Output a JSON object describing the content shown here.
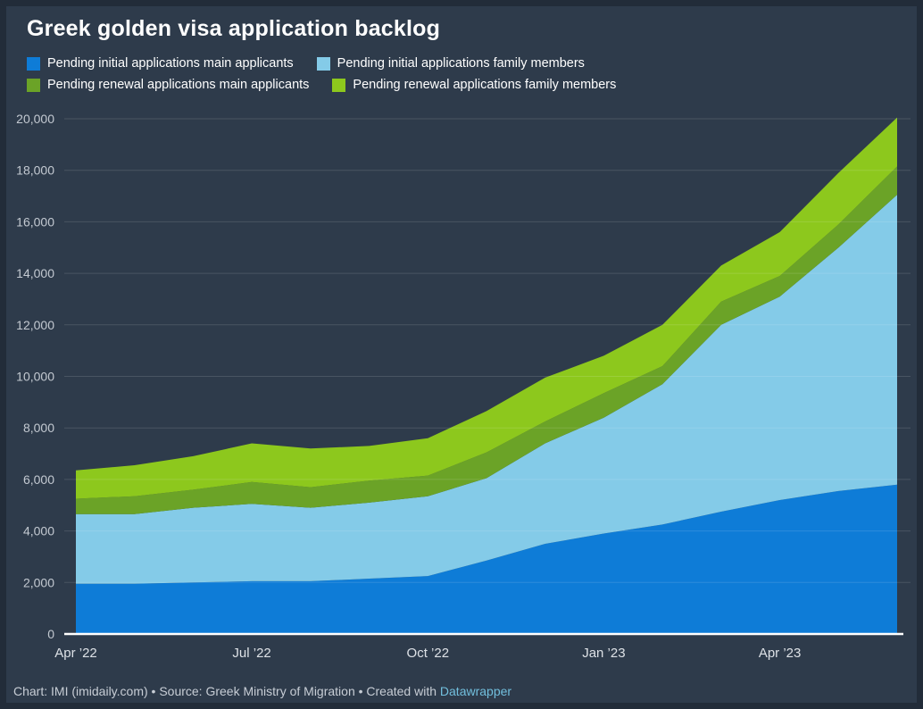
{
  "header": {
    "title": "Greek golden visa application backlog"
  },
  "theme": {
    "frame_color": "#222c39",
    "background_color": "#2e3b4b",
    "gridline_color": "#ffffff",
    "baseline_color": "#ffffff",
    "y_label_color": "#c3c9d1",
    "x_label_color": "#dde1e6",
    "footer_link_color": "#72bfdd"
  },
  "chart_data": {
    "type": "area",
    "stacked": true,
    "title": "Greek golden visa application backlog",
    "x": [
      "Apr ’22",
      "May ’22",
      "Jun ’22",
      "Jul ’22",
      "Aug ’22",
      "Sep ’22",
      "Oct ’22",
      "Nov ’22",
      "Dec ’22",
      "Jan ’23",
      "Feb ’23",
      "Mar ’23",
      "Apr ’23",
      "May ’23",
      "Jun ’23"
    ],
    "xticks_shown": [
      0,
      3,
      6,
      9,
      12
    ],
    "xtick_labels": [
      "Apr ’22",
      "Jul ’22",
      "Oct ’22",
      "Jan ’23",
      "Apr ’23"
    ],
    "ylim": [
      0,
      20000
    ],
    "ytick_step": 2000,
    "ytick_labels": [
      "0",
      "2,000",
      "4,000",
      "6,000",
      "8,000",
      "10,000",
      "12,000",
      "14,000",
      "16,000",
      "18,000",
      "20,000"
    ],
    "grid": true,
    "legend_position": "top",
    "series": [
      {
        "name": "Pending initial applications main applicants",
        "color": "#0e7cd7",
        "values": [
          1950,
          1950,
          2000,
          2050,
          2050,
          2150,
          2250,
          2850,
          3500,
          3900,
          4250,
          4750,
          5200,
          5550,
          5800
        ]
      },
      {
        "name": "Pending initial applications family members",
        "color": "#84cbe8",
        "values": [
          2700,
          2700,
          2900,
          3000,
          2850,
          2950,
          3100,
          3200,
          3900,
          4500,
          5450,
          7250,
          7900,
          9450,
          11250
        ]
      },
      {
        "name": "Pending renewal applications main applicants",
        "color": "#6ba327",
        "values": [
          600,
          700,
          700,
          850,
          800,
          850,
          800,
          1000,
          850,
          950,
          700,
          900,
          800,
          900,
          1100
        ]
      },
      {
        "name": "Pending renewal applications family members",
        "color": "#8dc81d",
        "values": [
          1100,
          1200,
          1300,
          1500,
          1500,
          1350,
          1450,
          1600,
          1700,
          1450,
          1600,
          1400,
          1700,
          2000,
          1900
        ]
      }
    ],
    "totals": [
      6350,
      6550,
      6900,
      7400,
      7200,
      7300,
      7600,
      8650,
      9950,
      10800,
      12000,
      14300,
      15600,
      17900,
      20050
    ]
  },
  "footer": {
    "prefix": "Chart: IMI (imidaily.com) • Source: Greek Ministry of Migration • Created with ",
    "link_label": "Datawrapper"
  }
}
